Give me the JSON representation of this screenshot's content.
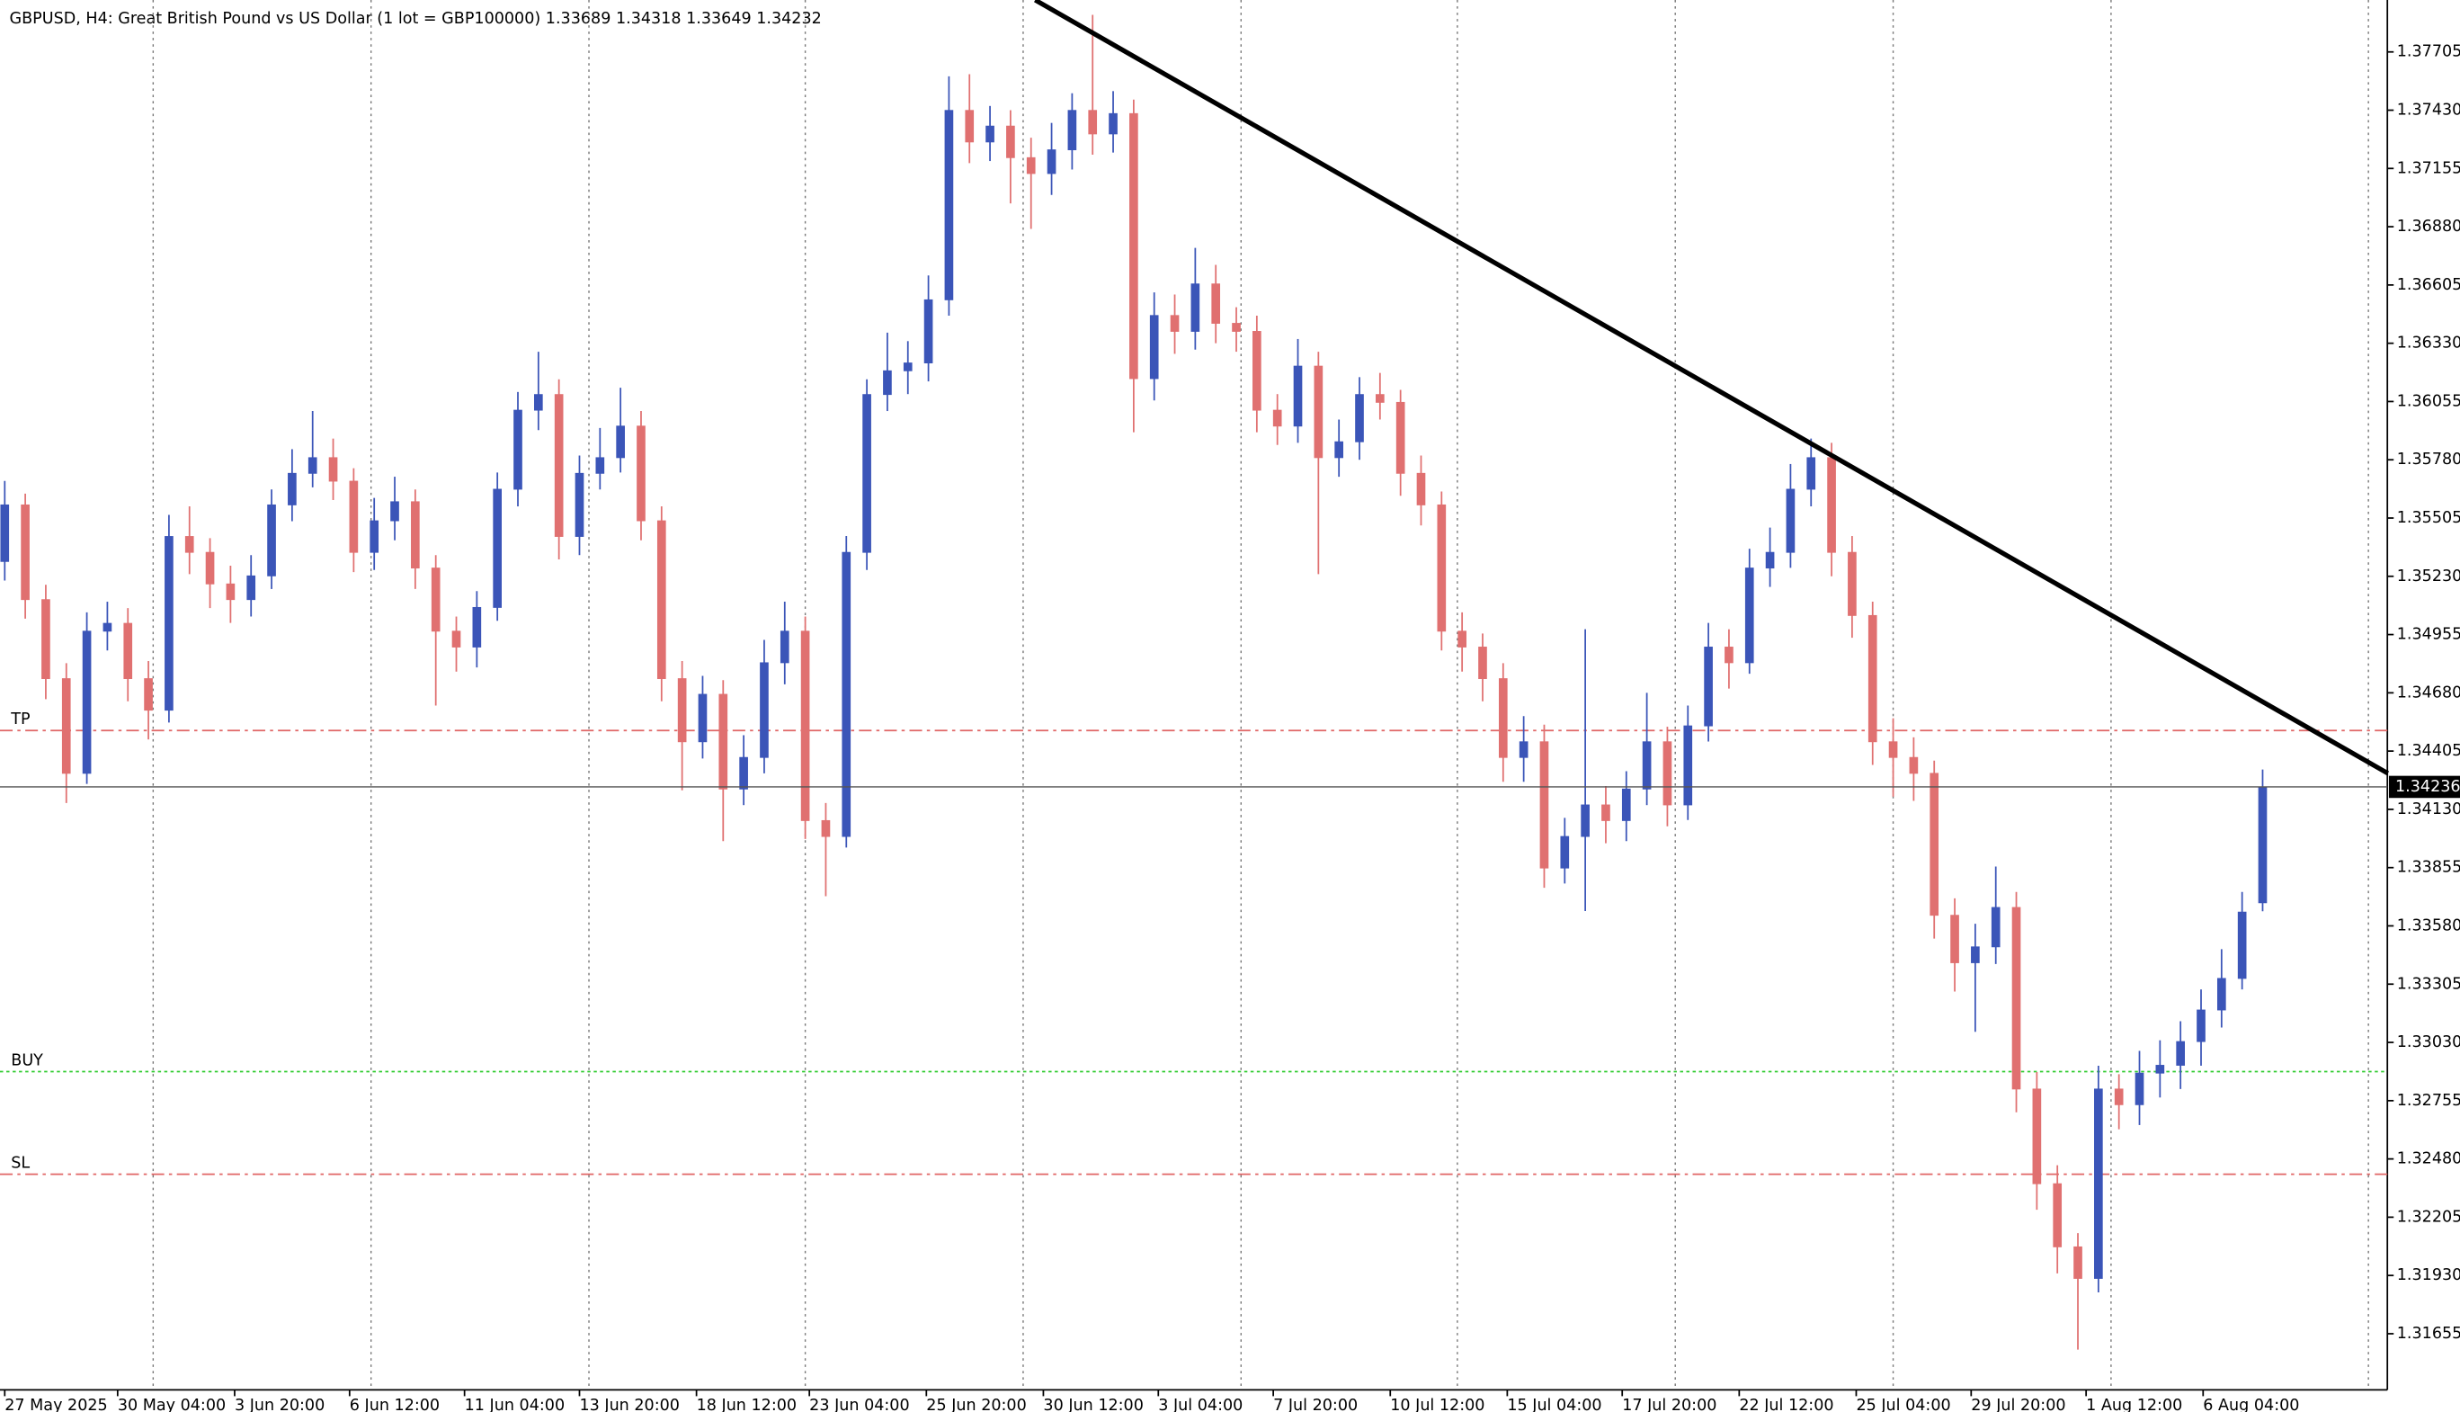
{
  "chart_data": {
    "type": "candlestick",
    "title": "GBPUSD, H4:  Great British Pound vs US Dollar (1 lot = GBP100000)  1.33689 1.34318 1.33649 1.34232",
    "bull_color": "#3b55b8",
    "bear_color": "#e07070",
    "grid": true,
    "ylim": [
      1.3139,
      1.3795
    ],
    "yticks": [
      1.37705,
      {
        "value": 1.3743,
        "label": "1.37430"
      },
      1.37155,
      {
        "value": 1.3688,
        "label": "1.36880"
      },
      1.36605,
      {
        "value": 1.3633,
        "label": "1.36330"
      },
      1.36055,
      {
        "value": 1.3578,
        "label": "1.35780"
      },
      1.35505,
      {
        "value": 1.3523,
        "label": "1.35230"
      },
      1.34955,
      {
        "value": 1.3468,
        "label": "1.34680"
      },
      1.34405,
      {
        "value": 1.3413,
        "label": "1.34130"
      },
      1.33855,
      {
        "value": 1.3358,
        "label": "1.33580"
      },
      1.33305,
      {
        "value": 1.3303,
        "label": "1.33030"
      },
      1.32755,
      {
        "value": 1.3248,
        "label": "1.32480"
      },
      1.32205,
      {
        "value": 1.3193,
        "label": "1.31930"
      },
      1.31655
    ],
    "xticks": [
      {
        "value": 0,
        "label": "27 May 2025"
      },
      {
        "value": 5.5,
        "label": "30 May 04:00"
      },
      {
        "value": 11.2,
        "label": "3 Jun 20:00"
      },
      {
        "value": 16.8,
        "label": "6 Jun 12:00"
      },
      {
        "value": 22.4,
        "label": "11 Jun 04:00"
      },
      {
        "value": 28,
        "label": "13 Jun 20:00"
      },
      {
        "value": 33.7,
        "label": "18 Jun 12:00"
      },
      {
        "value": 39.2,
        "label": "23 Jun 04:00"
      },
      {
        "value": 44.9,
        "label": "25 Jun 20:00"
      },
      {
        "value": 50.6,
        "label": "30 Jun 12:00"
      },
      {
        "value": 56.2,
        "label": "3 Jul 04:00"
      },
      {
        "value": 61.8,
        "label": "7 Jul 20:00"
      },
      {
        "value": 67.5,
        "label": "10 Jul 12:00"
      },
      {
        "value": 73.2,
        "label": "15 Jul 04:00"
      },
      {
        "value": 78.8,
        "label": "17 Jul 20:00"
      },
      {
        "value": 84.5,
        "label": "22 Jul 12:00"
      },
      {
        "value": 90.2,
        "label": "25 Jul 04:00"
      },
      {
        "value": 95.8,
        "label": "29 Jul 20:00"
      },
      {
        "value": 101.4,
        "label": "1 Aug 12:00"
      },
      {
        "value": 107.1,
        "label": "6 Aug 04:00"
      }
    ],
    "open": [
      1.353,
      1.35567,
      1.3512,
      1.34747,
      1.343,
      1.34971,
      1.35008,
      1.34747,
      1.34598,
      1.35418,
      1.35343,
      1.35194,
      1.3512,
      1.35232,
      1.35567,
      1.35716,
      1.3579,
      1.35679,
      1.35343,
      1.35492,
      1.35582,
      1.35269,
      1.34971,
      1.34896,
      1.35083,
      1.35641,
      1.36014,
      1.36088,
      1.35418,
      1.35716,
      1.3579,
      1.35939,
      1.35492,
      1.34747,
      1.34449,
      1.34673,
      1.34226,
      1.34375,
      1.34822,
      1.34971,
      1.34077,
      1.34002,
      1.35343,
      1.36088,
      1.362,
      1.36237,
      1.36535,
      1.37429,
      1.3728,
      1.37355,
      1.37206,
      1.37131,
      1.37243,
      1.37429,
      1.37318,
      1.37414,
      1.36163,
      1.36461,
      1.36386,
      1.3661,
      1.36424,
      1.36386,
      1.36014,
      1.35939,
      1.36222,
      1.3579,
      1.35865,
      1.36088,
      1.36051,
      1.35716,
      1.35567,
      1.34971,
      1.34896,
      1.34747,
      1.34375,
      1.34449,
      1.33853,
      1.34002,
      1.34151,
      1.34077,
      1.34226,
      1.34449,
      1.34151,
      1.34524,
      1.34896,
      1.34822,
      1.35269,
      1.35343,
      1.35641,
      1.3579,
      1.35343,
      1.35045,
      1.34449,
      1.34375,
      1.343,
      1.3363,
      1.33406,
      1.33481,
      1.33667,
      1.3281,
      1.32363,
      1.32065,
      1.31916,
      1.3281,
      1.32736,
      1.32885,
      1.32922,
      1.33034,
      1.33183,
      1.33332,
      1.33689
    ],
    "high": [
      1.3568,
      1.3562,
      1.3519,
      1.3482,
      1.3506,
      1.3511,
      1.3508,
      1.3483,
      1.3552,
      1.3556,
      1.3541,
      1.3528,
      1.3533,
      1.3564,
      1.3583,
      1.3601,
      1.3588,
      1.3574,
      1.356,
      1.357,
      1.3564,
      1.3533,
      1.3504,
      1.3516,
      1.3572,
      1.361,
      1.3629,
      1.3616,
      1.358,
      1.3593,
      1.3612,
      1.3601,
      1.3556,
      1.3483,
      1.3476,
      1.3474,
      1.3448,
      1.3493,
      1.3511,
      1.3504,
      1.3416,
      1.3542,
      1.3616,
      1.3638,
      1.3634,
      1.3665,
      1.3759,
      1.376,
      1.3745,
      1.3743,
      1.373,
      1.3737,
      1.3751,
      1.3788,
      1.3752,
      1.3748,
      1.3657,
      1.3656,
      1.3678,
      1.367,
      1.365,
      1.3646,
      1.3609,
      1.3635,
      1.3629,
      1.3597,
      1.3617,
      1.3619,
      1.3611,
      1.358,
      1.3563,
      1.3506,
      1.3496,
      1.3482,
      1.3457,
      1.3453,
      1.3409,
      1.3498,
      1.3424,
      1.3431,
      1.3468,
      1.3452,
      1.3462,
      1.3501,
      1.3498,
      1.3536,
      1.3546,
      1.3576,
      1.3588,
      1.3586,
      1.3542,
      1.3511,
      1.3456,
      1.3447,
      1.3436,
      1.3371,
      1.3359,
      1.3386,
      1.3374,
      1.3289,
      1.3245,
      1.3213,
      1.3292,
      1.3288,
      1.3299,
      1.3304,
      1.3313,
      1.3328,
      1.3347,
      1.3374,
      1.34318
    ],
    "low": [
      1.3521,
      1.3503,
      1.3465,
      1.3416,
      1.3425,
      1.3488,
      1.3464,
      1.3446,
      1.3454,
      1.3524,
      1.3508,
      1.3501,
      1.3504,
      1.3517,
      1.3549,
      1.3565,
      1.3559,
      1.3525,
      1.3526,
      1.354,
      1.3517,
      1.3462,
      1.3478,
      1.348,
      1.3502,
      1.3556,
      1.3592,
      1.3531,
      1.3533,
      1.3564,
      1.3572,
      1.354,
      1.3464,
      1.3422,
      1.3437,
      1.3398,
      1.3415,
      1.343,
      1.3472,
      1.3399,
      1.3372,
      1.3395,
      1.3526,
      1.3601,
      1.3609,
      1.3615,
      1.3646,
      1.3718,
      1.3719,
      1.3699,
      1.3687,
      1.3703,
      1.3715,
      1.3722,
      1.3723,
      1.3591,
      1.3606,
      1.3628,
      1.363,
      1.3633,
      1.3629,
      1.3591,
      1.3585,
      1.3586,
      1.3524,
      1.357,
      1.3578,
      1.3597,
      1.3561,
      1.3547,
      1.3488,
      1.3478,
      1.3464,
      1.3426,
      1.3426,
      1.3376,
      1.3378,
      1.3365,
      1.3397,
      1.3398,
      1.3415,
      1.3405,
      1.3408,
      1.3445,
      1.347,
      1.3477,
      1.3518,
      1.3527,
      1.3556,
      1.3523,
      1.3494,
      1.3434,
      1.3419,
      1.3417,
      1.3352,
      1.3327,
      1.3308,
      1.334,
      1.327,
      1.3224,
      1.3194,
      1.3158,
      1.3185,
      1.3262,
      1.3264,
      1.3277,
      1.3281,
      1.3292,
      1.331,
      1.3328,
      1.33649
    ],
    "close": [
      1.35567,
      1.3512,
      1.34747,
      1.343,
      1.34971,
      1.35008,
      1.34747,
      1.34598,
      1.35418,
      1.35343,
      1.35194,
      1.3512,
      1.35232,
      1.35567,
      1.35716,
      1.3579,
      1.35679,
      1.35343,
      1.35492,
      1.35582,
      1.35269,
      1.34971,
      1.34896,
      1.35083,
      1.35641,
      1.36014,
      1.36088,
      1.35418,
      1.35716,
      1.3579,
      1.35939,
      1.35492,
      1.34747,
      1.34449,
      1.34673,
      1.34226,
      1.34375,
      1.34822,
      1.34971,
      1.34077,
      1.34002,
      1.35343,
      1.36088,
      1.362,
      1.36237,
      1.36535,
      1.37429,
      1.3728,
      1.37355,
      1.37206,
      1.37131,
      1.37243,
      1.37429,
      1.37318,
      1.37414,
      1.36163,
      1.36461,
      1.36386,
      1.3661,
      1.36424,
      1.36386,
      1.36014,
      1.35939,
      1.36222,
      1.3579,
      1.35865,
      1.36088,
      1.36051,
      1.35716,
      1.35567,
      1.34971,
      1.34896,
      1.34747,
      1.34375,
      1.34449,
      1.33853,
      1.34002,
      1.34151,
      1.34077,
      1.34226,
      1.34449,
      1.34151,
      1.34524,
      1.34896,
      1.34822,
      1.35269,
      1.35343,
      1.35641,
      1.3579,
      1.35343,
      1.35045,
      1.34449,
      1.34375,
      1.343,
      1.3363,
      1.33406,
      1.33481,
      1.33667,
      1.3281,
      1.32363,
      1.32065,
      1.31916,
      1.3281,
      1.32736,
      1.32885,
      1.32922,
      1.33034,
      1.33183,
      1.33332,
      1.33645,
      1.34232
    ],
    "levels": [
      {
        "name": "TP",
        "value": 1.34502,
        "color": "#e06666",
        "style": "dashdot"
      },
      {
        "name": "BUY",
        "value": 1.32892,
        "color": "#33cc33",
        "style": "dot"
      },
      {
        "name": "SL",
        "value": 1.32408,
        "color": "#e06666",
        "style": "dashdot"
      }
    ],
    "current_price": 1.34236,
    "trendline": {
      "x": [
        50.2,
        116.1
      ],
      "y": [
        1.3795,
        1.343
      ],
      "color": "#000000"
    }
  }
}
